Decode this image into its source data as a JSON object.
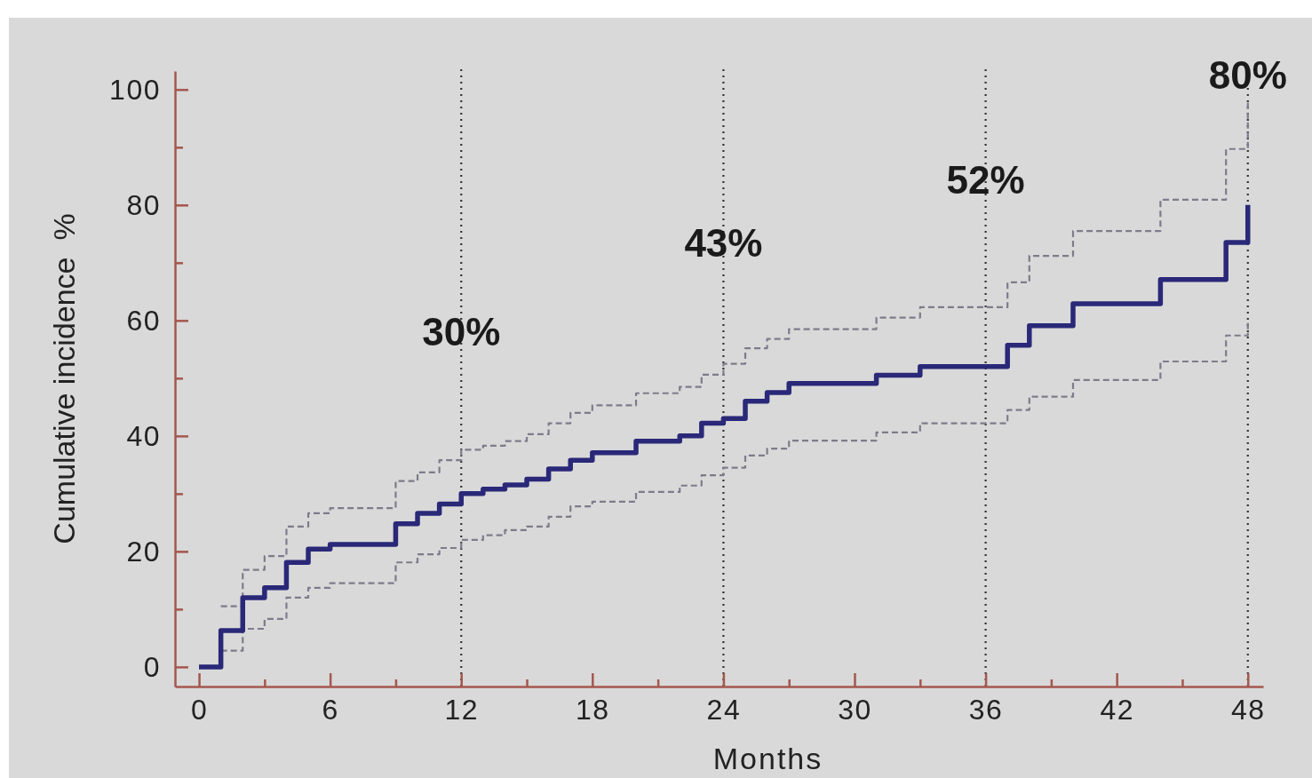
{
  "chart_data": {
    "type": "step",
    "xlabel": "Months",
    "ylabel": "Cumulative incidence  %",
    "xlim": [
      -1.1,
      48.7
    ],
    "ylim": [
      -3.4,
      103.2
    ],
    "xticks": [
      0,
      {
        "value": 3,
        "label": null
      },
      6,
      {
        "value": 9,
        "label": null
      },
      12,
      {
        "value": 15,
        "label": null
      },
      18,
      {
        "value": 21,
        "label": null
      },
      24,
      {
        "value": 27,
        "label": null
      },
      30,
      {
        "value": 33,
        "label": null
      },
      36,
      {
        "value": 39,
        "label": null
      },
      42,
      {
        "value": 45,
        "label": null
      },
      48
    ],
    "yticks": [
      0,
      {
        "value": 10,
        "label": null
      },
      20,
      {
        "value": 30,
        "label": null
      },
      40,
      {
        "value": 50,
        "label": null
      },
      60,
      {
        "value": 70,
        "label": null
      },
      80,
      {
        "value": 90,
        "label": null
      },
      100
    ],
    "series": [
      {
        "color": "#7c7c8c",
        "line_style": "dashed",
        "x": [
          1,
          2,
          3,
          4,
          5,
          6,
          9,
          10,
          11,
          12,
          13,
          14,
          15,
          16,
          17,
          18,
          20,
          22,
          23,
          24,
          25,
          26,
          27,
          31,
          33,
          37,
          38,
          40,
          44,
          47,
          48
        ],
        "values": [
          10.5,
          16.8,
          19.2,
          24.3,
          26.6,
          27.5,
          32.2,
          33.7,
          35.8,
          37.6,
          38.3,
          39.1,
          40.3,
          42.2,
          44,
          45.3,
          47.4,
          48.5,
          50.6,
          52.5,
          55.2,
          56.8,
          58.5,
          60.5,
          62.3,
          66.6,
          71.2,
          75.5,
          80.9,
          89.7,
          98
        ]
      },
      {
        "color": "#7c7c8c",
        "line_style": "dashed",
        "x": [
          1,
          2,
          3,
          4,
          5,
          6,
          9,
          10,
          11,
          12,
          13,
          14,
          15,
          16,
          17,
          18,
          20,
          22,
          23,
          24,
          25,
          26,
          27,
          31,
          33,
          37,
          38,
          40,
          44,
          47,
          48
        ],
        "values": [
          2.8,
          6.6,
          8.3,
          12,
          13.7,
          14.5,
          18.1,
          19.5,
          20.6,
          22,
          22.8,
          23.7,
          24.3,
          26,
          27.8,
          28.6,
          30.3,
          31.4,
          33.2,
          34.5,
          36.6,
          37.8,
          39.2,
          40.6,
          42.2,
          44.5,
          46.8,
          49.7,
          52.9,
          57.4,
          60
        ]
      },
      {
        "color": "#2a2878",
        "line_style": "solid",
        "x": [
          0,
          1,
          2,
          3,
          4,
          5,
          6,
          9,
          10,
          11,
          12,
          13,
          14,
          15,
          16,
          17,
          18,
          20,
          22,
          23,
          24,
          25,
          26,
          27,
          31,
          33,
          37,
          38,
          40,
          44,
          47,
          48
        ],
        "values": [
          0,
          6.3,
          12,
          13.7,
          18.1,
          20.4,
          21.2,
          24.8,
          26.6,
          28.2,
          30,
          30.8,
          31.5,
          32.5,
          34.3,
          35.8,
          37.1,
          39.1,
          40,
          42.2,
          43,
          46,
          47.5,
          49.1,
          50.5,
          52,
          55.7,
          59.1,
          62.9,
          67.1,
          73.5,
          80
        ]
      }
    ],
    "ref_lines": [
      {
        "axis": "x",
        "value": 12,
        "line_style": "dotted",
        "color": "#333333"
      },
      {
        "axis": "x",
        "value": 24,
        "line_style": "dotted",
        "color": "#333333"
      },
      {
        "axis": "x",
        "value": 36,
        "line_style": "dotted",
        "color": "#333333"
      },
      {
        "axis": "x",
        "value": 48,
        "line_style": "dotted",
        "color": "#333333"
      }
    ],
    "annotations": [
      {
        "text": "30%",
        "x": 12,
        "y": 58
      },
      {
        "text": "43%",
        "x": 24,
        "y": 73.5
      },
      {
        "text": "52%",
        "x": 36,
        "y": 84.3
      },
      {
        "text": "80%",
        "x": 48,
        "y": 102.5
      }
    ]
  }
}
